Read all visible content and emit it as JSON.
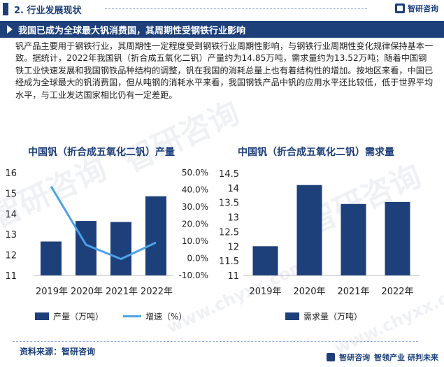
{
  "header": {
    "section_label": "2. 行业发展现状",
    "brand_name": "智研咨询",
    "headline": "我国已成为全球最大钒消费国，其周期性受钢铁行业影响"
  },
  "paragraph": "钒产品主要用于钢铁行业，其周期性一定程度受到钢铁行业周期性影响，与钢铁行业周期性变化规律保持基本一致。据统计，2022年我国钒（折合成五氧化二钒）产量约为14.85万吨，需求量约为13.52万吨；随着中国钢铁工业快速发展和我国钢铁品种结构的调整，钒在我国的消耗总量上也有着结构性的增加。按地区来看，中国已经成为全球最大的钒消费国，但从吨钢的消耗水平来看，我国钢铁产品中钒的应用水平还比较低，低于世界平均水平，与工业发达国家相比仍有一定差距。",
  "watermarks": [
    "智研咨询",
    "www.chyxx.com"
  ],
  "chart_data": [
    {
      "type": "bar",
      "title": "中国钒（折合成五氧化二钒）产量",
      "categories": [
        "2019年",
        "2020年",
        "2021年",
        "2022年"
      ],
      "series": [
        {
          "name": "产量（万吨）",
          "type": "bar",
          "axis": "left",
          "values": [
            12.65,
            13.65,
            13.6,
            14.85
          ]
        },
        {
          "name": "增速（%）",
          "type": "line",
          "axis": "right",
          "values": [
            42.0,
            7.9,
            -0.4,
            9.2
          ]
        }
      ],
      "ylim": [
        11,
        16
      ],
      "yticks": [
        "11",
        "12",
        "13",
        "14",
        "15",
        "16"
      ],
      "y2lim": [
        -10,
        50
      ],
      "y2ticks": [
        "-10.0%",
        "0.0%",
        "10.0%",
        "20.0%",
        "30.0%",
        "40.0%",
        "50.0%"
      ],
      "colors": {
        "bar": "#1d3f7a",
        "line": "#4aa3e6"
      },
      "legend": "bottom",
      "grid": false
    },
    {
      "type": "bar",
      "title": "中国钒（折合成五氧化二钒）需求量",
      "categories": [
        "2019年",
        "2020年",
        "2021年",
        "2022年"
      ],
      "series": [
        {
          "name": "需求量（万吨）",
          "type": "bar",
          "values": [
            12.0,
            14.1,
            13.45,
            13.52
          ]
        }
      ],
      "ylim": [
        11,
        14.5
      ],
      "yticks": [
        "11",
        "11.5",
        "12",
        "12.5",
        "13",
        "13.5",
        "14",
        "14.5"
      ],
      "colors": {
        "bar": "#1d3f7a"
      },
      "legend": "bottom",
      "grid": false
    }
  ],
  "footer": {
    "source": "资料来源：智研咨询",
    "brand": "智研咨询",
    "slogan": "智领产业  研判未来"
  }
}
